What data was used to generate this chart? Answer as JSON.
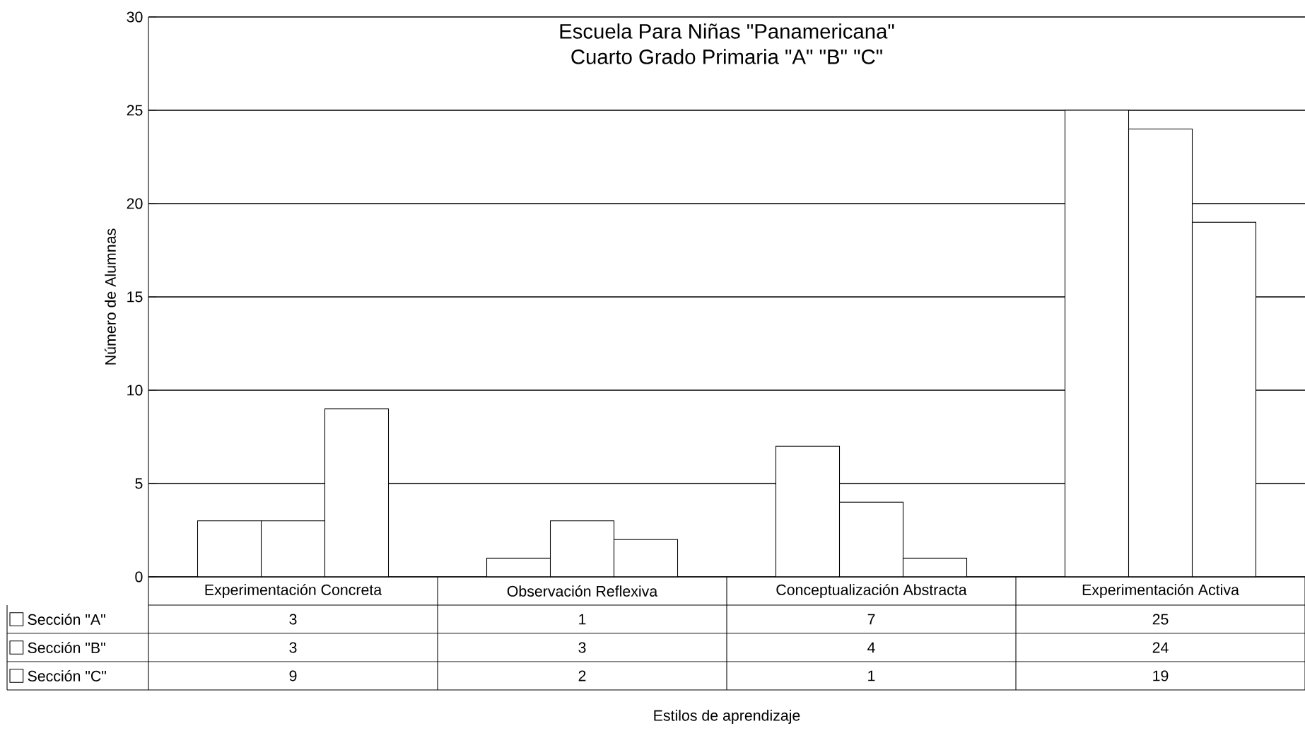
{
  "chart_data": {
    "type": "bar",
    "title": "Escuela Para Niñas \"Panamericana\"",
    "subtitle": "Cuarto Grado Primaria \"A\" \"B\" \"C\"",
    "annotations": [
      "Estilos de aprendizaje"
    ],
    "ylabel": "Número de Alumnas",
    "categories": [
      "Experimentación Concreta",
      "Observación Reflexiva",
      "Conceptualización Abstracta",
      "Experimentación Activa"
    ],
    "series": [
      {
        "name": "Sección \"A\"",
        "color": "#ffffff",
        "values": [
          3,
          1,
          7,
          25
        ]
      },
      {
        "name": "Sección \"B\"",
        "color": "#ffffff",
        "values": [
          3,
          3,
          4,
          24
        ]
      },
      {
        "name": "Sección \"C\"",
        "color": "#ffffff",
        "values": [
          9,
          2,
          1,
          19
        ]
      }
    ],
    "ylim": [
      0,
      30
    ],
    "yticks": [
      0,
      5,
      10,
      15,
      20,
      25,
      30
    ],
    "grid": "y",
    "legend": "bottom left",
    "data_labels": true
  }
}
